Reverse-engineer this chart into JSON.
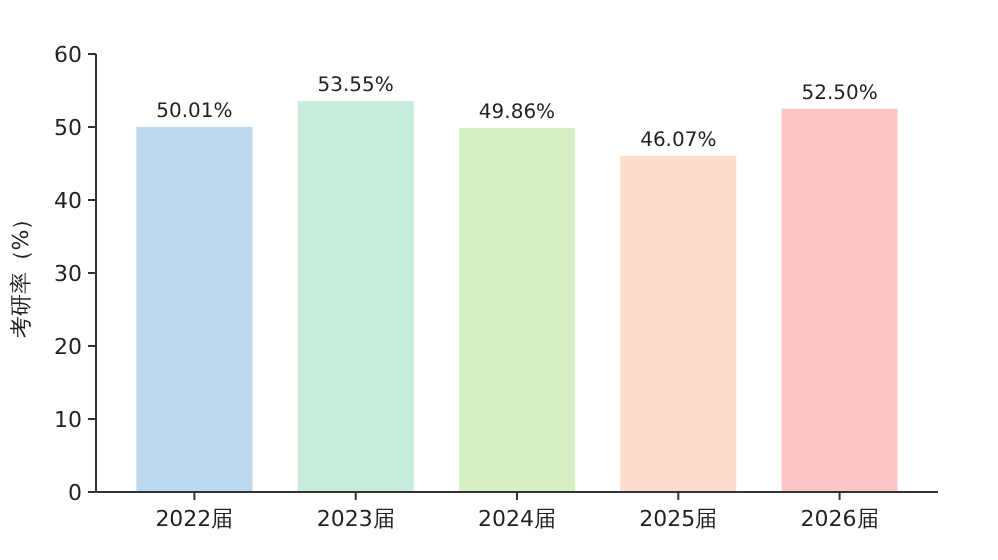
{
  "chart_data": {
    "type": "bar",
    "ylabel": "考研率（%）",
    "categories": [
      "2022届",
      "2023届",
      "2024届",
      "2025届",
      "2026届"
    ],
    "values": [
      50.01,
      53.55,
      49.86,
      46.07,
      52.5
    ],
    "value_labels": [
      "50.01%",
      "53.55%",
      "49.86%",
      "46.07%",
      "52.50%"
    ],
    "colors": [
      "#bcd9ef",
      "#c7eedd",
      "#d7efc4",
      "#fddccb",
      "#fcc7c7"
    ],
    "ylim": [
      0,
      60
    ],
    "yticks": [
      0,
      10,
      20,
      30,
      40,
      50,
      60
    ],
    "grid": false
  }
}
